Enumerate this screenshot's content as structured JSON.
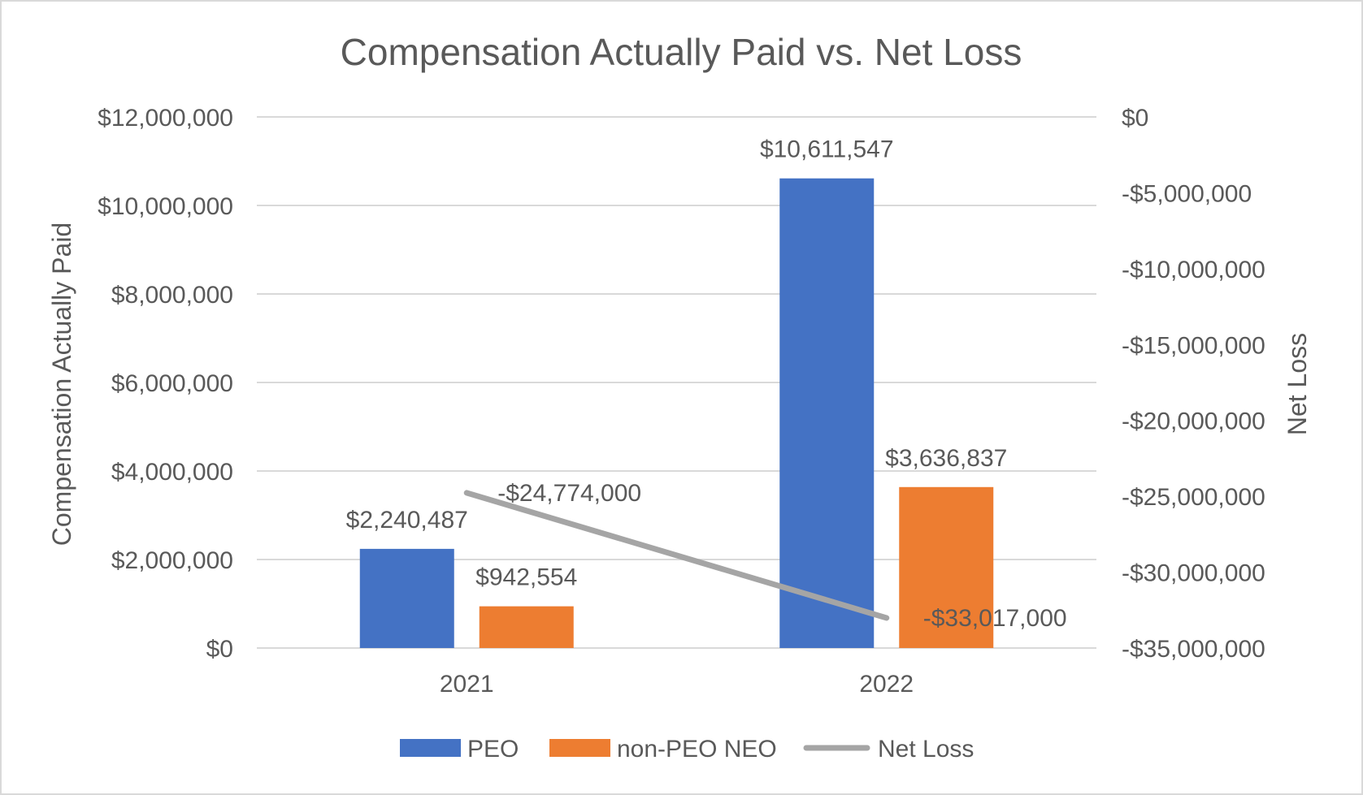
{
  "chart_data": {
    "type": "bar",
    "title": "Compensation Actually Paid vs. Net Loss",
    "categories": [
      "2021",
      "2022"
    ],
    "series": [
      {
        "name": "PEO",
        "type": "bar",
        "axis": "left",
        "color": "#4472C4",
        "values": [
          2240487,
          10611547
        ],
        "labels": [
          "$2,240,487",
          "$10,611,547"
        ]
      },
      {
        "name": "non-PEO NEO",
        "type": "bar",
        "axis": "left",
        "color": "#ED7D31",
        "values": [
          942554,
          3636837
        ],
        "labels": [
          "$942,554",
          "$3,636,837"
        ]
      },
      {
        "name": "Net Loss",
        "type": "line",
        "axis": "right",
        "color": "#A5A5A5",
        "values": [
          -24774000,
          -33017000
        ],
        "labels": [
          "-$24,774,000",
          "-$33,017,000"
        ]
      }
    ],
    "ylabel": "Compensation Actually Paid",
    "y2label": "Net Loss",
    "ylim": [
      0,
      12000000
    ],
    "y2lim": [
      -35000000,
      0
    ],
    "yticks": [
      0,
      2000000,
      4000000,
      6000000,
      8000000,
      10000000,
      12000000
    ],
    "ytick_labels": [
      "$0",
      "$2,000,000",
      "$4,000,000",
      "$6,000,000",
      "$8,000,000",
      "$10,000,000",
      "$12,000,000"
    ],
    "y2ticks": [
      0,
      -5000000,
      -10000000,
      -15000000,
      -20000000,
      -25000000,
      -30000000,
      -35000000
    ],
    "y2tick_labels": [
      "$0",
      "-$5,000,000",
      "-$10,000,000",
      "-$15,000,000",
      "-$20,000,000",
      "-$25,000,000",
      "-$30,000,000",
      "-$35,000,000"
    ],
    "grid": true,
    "legend": "bottom-center",
    "legend_entries": [
      "PEO",
      "non-PEO NEO",
      "Net Loss"
    ]
  }
}
